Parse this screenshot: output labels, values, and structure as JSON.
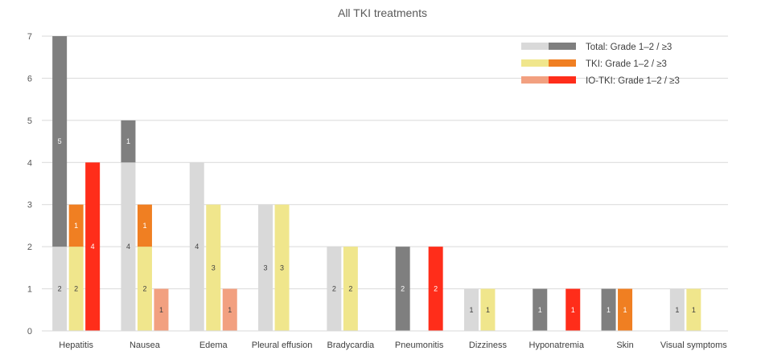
{
  "chart_data": {
    "type": "bar",
    "title": "All TKI treatments",
    "categories": [
      "Hepatitis",
      "Nausea",
      "Edema",
      "Pleural effusion",
      "Bradycardia",
      "Pneumonitis",
      "Dizziness",
      "Hyponatremia",
      "Skin",
      "Visual symptoms"
    ],
    "ylim": [
      0,
      7
    ],
    "yticks": [
      0,
      1,
      2,
      3,
      4,
      5,
      6,
      7
    ],
    "grid": true,
    "legend_position": "top-right",
    "groups": [
      {
        "name": "Total",
        "legend_label": "Total: Grade 1–2 / ≥3",
        "colors": {
          "grade12": "#d9d9d9",
          "grade3": "#7f7f7f"
        },
        "grade12": [
          2,
          4,
          4,
          3,
          2,
          0,
          1,
          0,
          0,
          1
        ],
        "grade3": [
          5,
          1,
          0,
          0,
          0,
          2,
          0,
          1,
          1,
          0
        ]
      },
      {
        "name": "TKI",
        "legend_label": "TKI: Grade 1–2 / ≥3",
        "colors": {
          "grade12": "#f0e68c",
          "grade3": "#f07f22"
        },
        "grade12": [
          2,
          2,
          3,
          3,
          2,
          0,
          1,
          0,
          0,
          1
        ],
        "grade3": [
          1,
          1,
          0,
          0,
          0,
          0,
          0,
          0,
          1,
          0
        ]
      },
      {
        "name": "IO-TKI",
        "legend_label": "IO-TKI: Grade 1–2 / ≥3",
        "colors": {
          "grade12": "#f2a080",
          "grade3": "#ff2d1a"
        },
        "grade12": [
          0,
          1,
          1,
          0,
          0,
          0,
          0,
          0,
          0,
          0
        ],
        "grade3": [
          4,
          0,
          0,
          0,
          0,
          2,
          0,
          1,
          0,
          0
        ]
      }
    ]
  }
}
